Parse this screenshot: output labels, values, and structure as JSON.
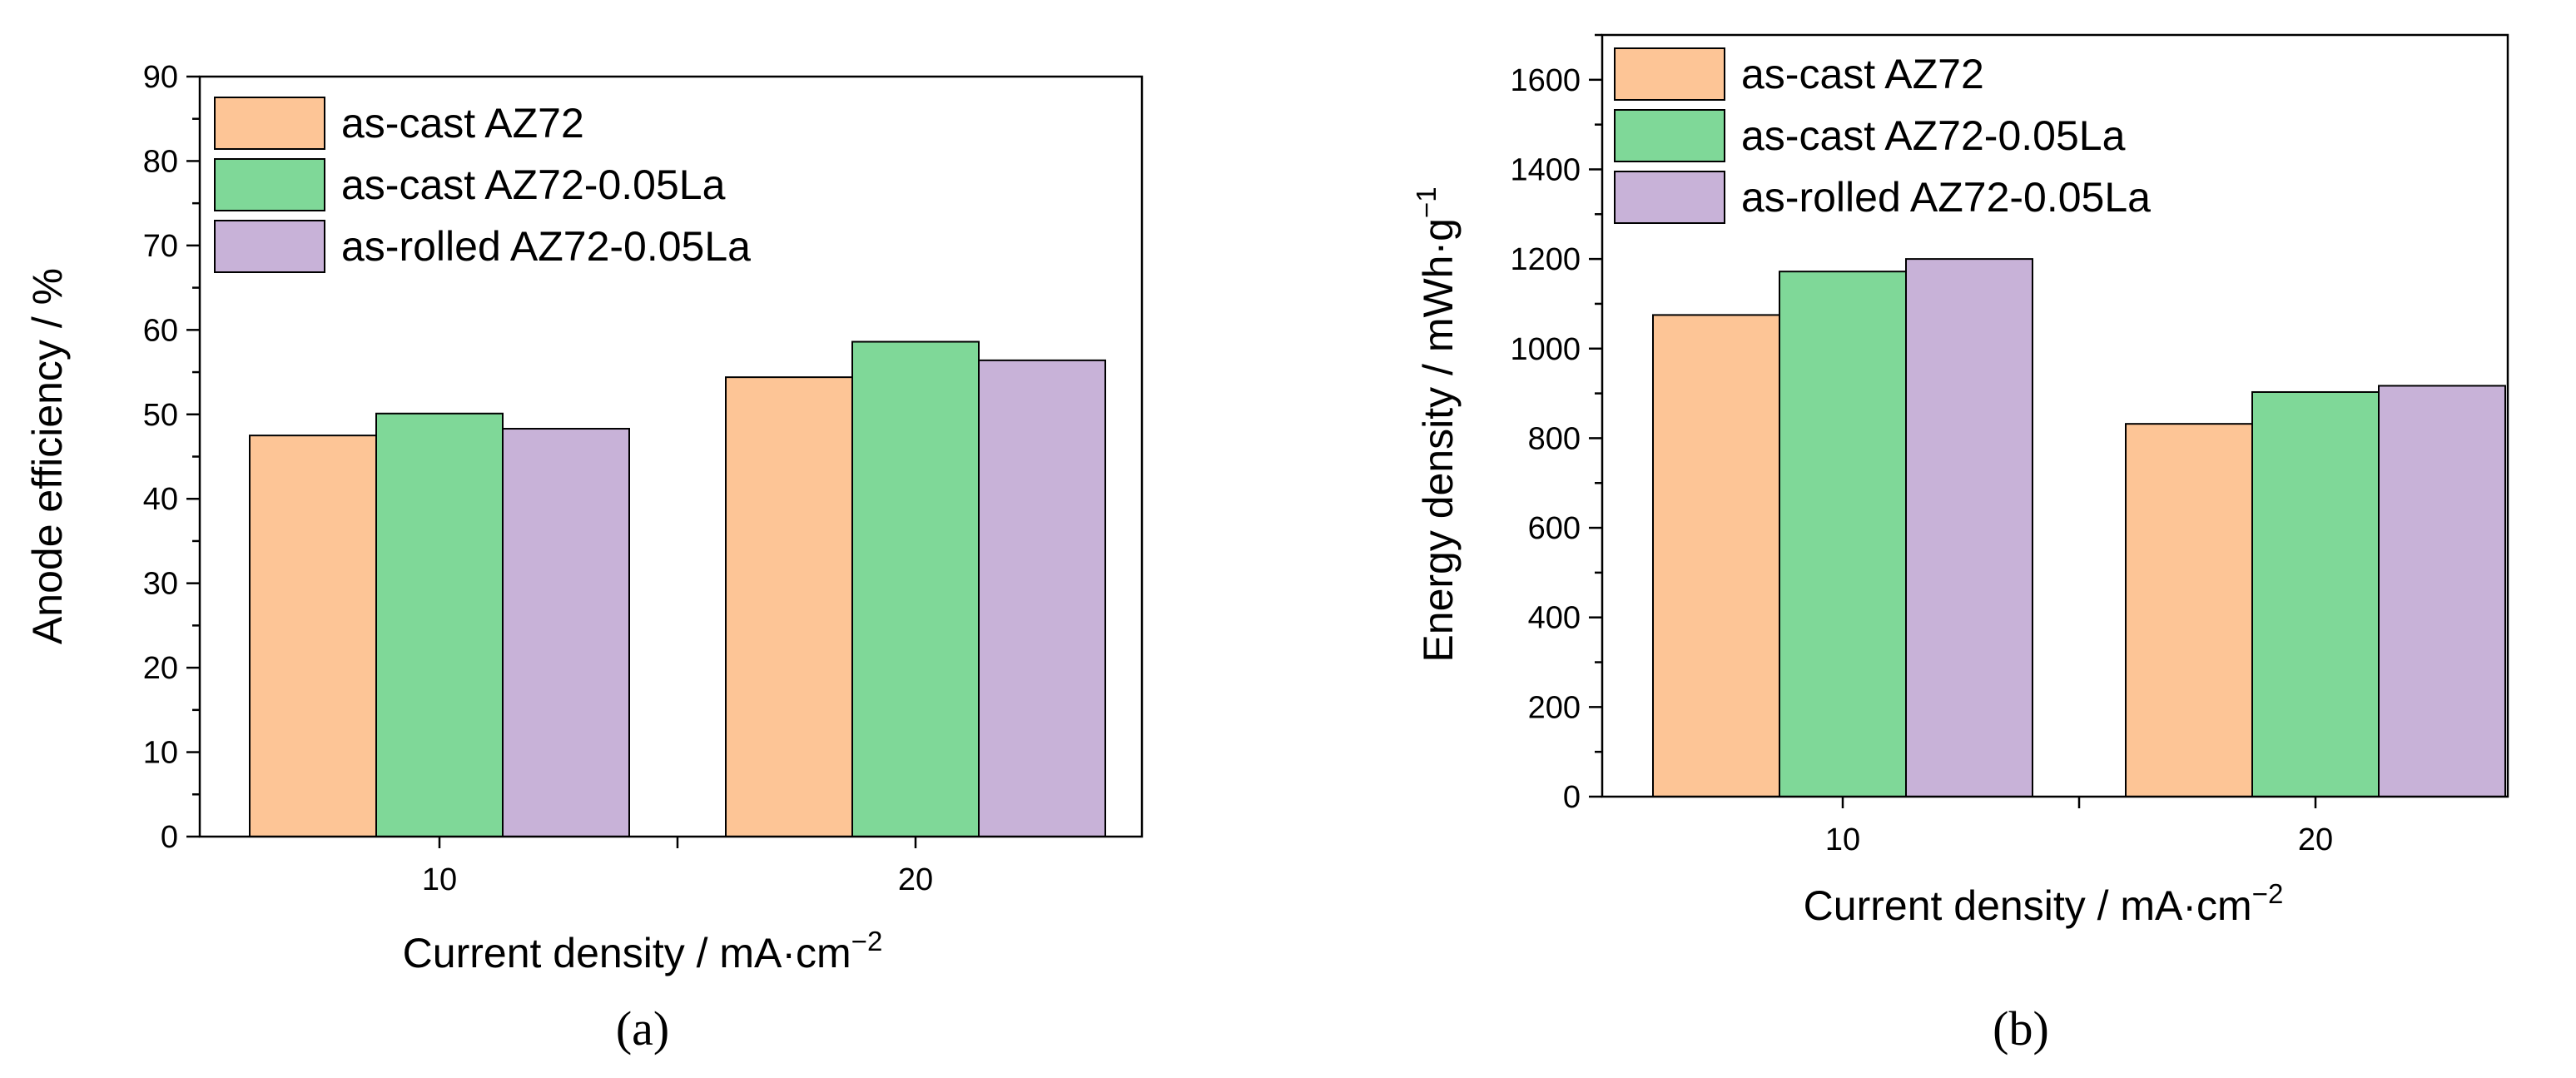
{
  "chart_data": [
    {
      "type": "bar",
      "panel_label": "(a)",
      "categories": [
        "10",
        "20"
      ],
      "series": [
        {
          "name": "as-cast AZ72",
          "color": "#FDC596",
          "values": [
            47.5,
            54.4
          ]
        },
        {
          "name": "as-cast AZ72-0.05La",
          "color": "#7FD898",
          "values": [
            50.1,
            58.6
          ]
        },
        {
          "name": "as-rolled AZ72-0.05La",
          "color": "#C8B2D8",
          "values": [
            48.3,
            56.4
          ]
        }
      ],
      "xlabel": "Current density / mA·cm",
      "xlabel_sup": "−2",
      "ylabel": "Anode efficiency / %",
      "ylim": [
        0,
        90
      ],
      "yticks": [
        "0",
        "10",
        "20",
        "30",
        "40",
        "50",
        "60",
        "70",
        "80",
        "90"
      ],
      "legend_position": "top-left"
    },
    {
      "type": "bar",
      "panel_label": "(b)",
      "categories": [
        "10",
        "20"
      ],
      "series": [
        {
          "name": "as-cast AZ72",
          "color": "#FDC596",
          "values": [
            1075,
            832
          ]
        },
        {
          "name": "as-cast AZ72-0.05La",
          "color": "#7FD898",
          "values": [
            1172,
            903
          ]
        },
        {
          "name": "as-rolled AZ72-0.05La",
          "color": "#C8B2D8",
          "values": [
            1200,
            917
          ]
        }
      ],
      "xlabel": "Current density / mA·cm",
      "xlabel_sup": "−2",
      "ylabel": "Energy density / mWh·g",
      "ylabel_sup": "−1",
      "ylim": [
        0,
        1700
      ],
      "yticks": [
        "0",
        "200",
        "400",
        "600",
        "800",
        "1000",
        "1200",
        "1400",
        "1600"
      ],
      "legend_position": "top-left"
    }
  ]
}
